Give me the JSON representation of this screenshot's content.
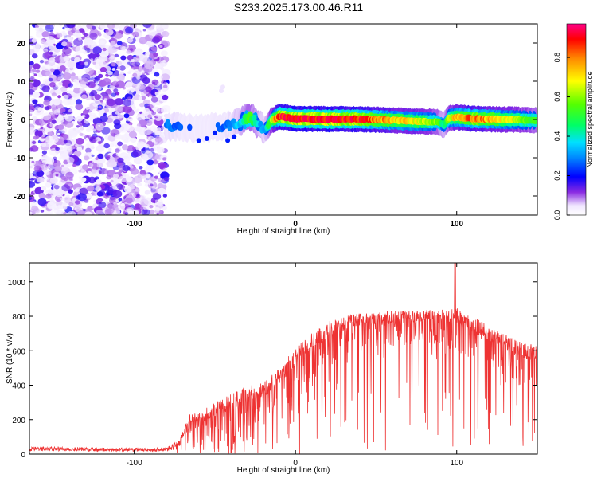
{
  "title": "S233.2025.173.00.46.R11",
  "chart_data": [
    {
      "type": "heatmap",
      "name": "spectrogram",
      "xlabel": "Height of straight line (km)",
      "ylabel": "Frequency (Hz)",
      "xlim": [
        -165,
        150
      ],
      "ylim": [
        -25,
        25
      ],
      "x_ticks": [
        -100,
        0,
        100
      ],
      "y_ticks": [
        -20,
        -10,
        0,
        10,
        20
      ],
      "colorbar": {
        "label": "Normalized spectral amplitude",
        "range": [
          0,
          0.97
        ],
        "ticks": [
          0.0,
          0.2,
          0.4,
          0.6,
          0.8
        ],
        "tick_labels": [
          "0.0",
          "0.2",
          "0.4",
          "0.6",
          "0.8"
        ]
      },
      "noise_region_x": [
        -165,
        -80
      ],
      "signal_track": {
        "x": [
          -80,
          -70,
          -60,
          -50,
          -40,
          -33,
          -28,
          -22,
          -19,
          -15,
          -10,
          0,
          20,
          40,
          60,
          75,
          88,
          92,
          95,
          100,
          110,
          130,
          150
        ],
        "freq": [
          -1.5,
          -2.2,
          -2.5,
          -2.0,
          -1.6,
          -0.5,
          0.5,
          -1.5,
          -2.8,
          -0.4,
          0.8,
          0.2,
          0.1,
          0.1,
          -0.2,
          -0.5,
          -0.6,
          -1.5,
          0.3,
          0.6,
          0.2,
          0.0,
          -0.2
        ],
        "amplitude": [
          0.3,
          0.25,
          0.22,
          0.24,
          0.28,
          0.4,
          0.55,
          0.35,
          0.3,
          0.6,
          0.9,
          0.95,
          0.95,
          0.9,
          0.75,
          0.7,
          0.6,
          0.4,
          0.6,
          0.75,
          0.85,
          0.7,
          0.55
        ]
      }
    },
    {
      "type": "line",
      "name": "snr",
      "xlabel": "Height of straight line (km)",
      "ylabel": "SNR (10 * v/v)",
      "xlim": [
        -165,
        150
      ],
      "ylim": [
        0,
        1110
      ],
      "x_ticks": [
        -100,
        0,
        100
      ],
      "y_ticks": [
        0,
        200,
        400,
        600,
        800,
        1000
      ],
      "color": "#ee3333",
      "envelope": {
        "x": [
          -165,
          -120,
          -90,
          -80,
          -72,
          -65,
          -60,
          -50,
          -40,
          -30,
          -20,
          -10,
          0,
          10,
          20,
          30,
          40,
          60,
          80,
          90,
          100,
          110,
          120,
          130,
          140,
          150
        ],
        "upper": [
          45,
          38,
          35,
          40,
          80,
          250,
          240,
          300,
          350,
          400,
          420,
          500,
          620,
          700,
          770,
          800,
          820,
          830,
          835,
          840,
          850,
          800,
          740,
          700,
          650,
          630
        ],
        "lower": [
          18,
          16,
          15,
          15,
          30,
          40,
          50,
          60,
          80,
          110,
          150,
          210,
          300,
          420,
          500,
          560,
          600,
          620,
          630,
          620,
          600,
          540,
          480,
          440,
          400,
          360
        ]
      },
      "peak": {
        "x": 99,
        "y": 1110
      }
    }
  ]
}
